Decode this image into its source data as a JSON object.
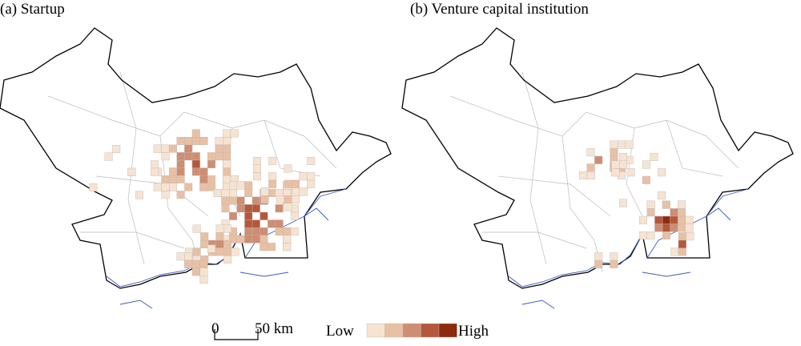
{
  "panels": [
    {
      "title": "(a) Startup"
    },
    {
      "title": "(b) Venture capital institution"
    }
  ],
  "scale_bar": {
    "start": "0",
    "end": "50 km"
  },
  "legend": {
    "low": "Low",
    "high": "High",
    "colors": [
      "#f6e3d1",
      "#e8c0a4",
      "#cf8d72",
      "#b4573b",
      "#8e2a0e"
    ]
  }
}
